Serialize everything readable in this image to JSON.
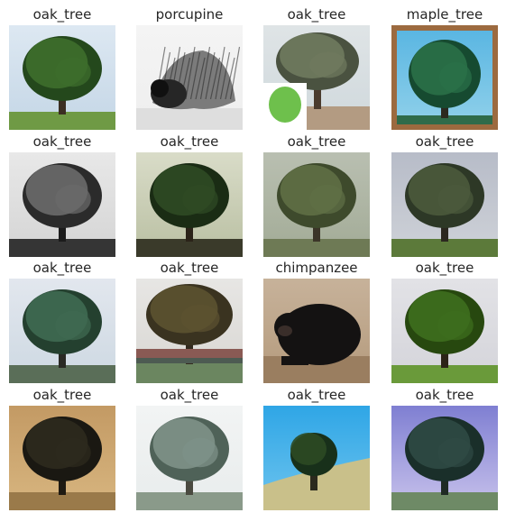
{
  "images": [
    {
      "label": "oak_tree",
      "scene": "tree",
      "sky_top": "#dde8f2",
      "sky_bottom": "#c4d6e6",
      "ground": "#6f9a45",
      "canopy": "#3e6e2c",
      "canopy_dark": "#24481c",
      "trunk": "#3b2e22"
    },
    {
      "label": "porcupine",
      "scene": "porcupine",
      "sky_top": "#f4f4f4",
      "sky_bottom": "#eeeeee",
      "ground": "#dedede",
      "canopy": "#7b7b7b",
      "canopy_dark": "#262626",
      "trunk": "#1f1f1f"
    },
    {
      "label": "oak_tree",
      "scene": "tree_inset",
      "sky_top": "#dfe4e6",
      "sky_bottom": "#cfd8dc",
      "ground": "#b39b82",
      "canopy": "#6f7a5e",
      "canopy_dark": "#4a5240",
      "trunk": "#4a3b2e",
      "inset_fill": "#6ec04c"
    },
    {
      "label": "maple_tree",
      "scene": "tree_framed",
      "sky_top": "#5ab6e2",
      "sky_bottom": "#8fd0ea",
      "ground": "#2f6b4a",
      "canopy": "#2a7048",
      "canopy_dark": "#164a30",
      "trunk": "#2c2a20",
      "frame": "#9c6a3f"
    },
    {
      "label": "oak_tree",
      "scene": "tree",
      "sky_top": "#e8e8e8",
      "sky_bottom": "#d4d4d4",
      "ground": "#353535",
      "canopy": "#6a6a6a",
      "canopy_dark": "#2b2b2b",
      "trunk": "#1b1b1b"
    },
    {
      "label": "oak_tree",
      "scene": "tree",
      "sky_top": "#d9dcc8",
      "sky_bottom": "#b9bfa2",
      "ground": "#3a3a2a",
      "canopy": "#2f4a24",
      "canopy_dark": "#1a2c14",
      "trunk": "#2b2319"
    },
    {
      "label": "oak_tree",
      "scene": "tree",
      "sky_top": "#b9bfb1",
      "sky_bottom": "#a2ab96",
      "ground": "#6e7a55",
      "canopy": "#5f6f45",
      "canopy_dark": "#3e4a2c",
      "trunk": "#3b3528"
    },
    {
      "label": "oak_tree",
      "scene": "tree",
      "sky_top": "#b7bcc8",
      "sky_bottom": "#cfd2d8",
      "ground": "#5c7a3a",
      "canopy": "#4b5a3c",
      "canopy_dark": "#2d3826",
      "trunk": "#2b271f"
    },
    {
      "label": "oak_tree",
      "scene": "tree",
      "sky_top": "#e2e7ee",
      "sky_bottom": "#cdd8e2",
      "ground": "#5a6e58",
      "canopy": "#3f6a52",
      "canopy_dark": "#24402f",
      "trunk": "#2a2a24"
    },
    {
      "label": "oak_tree",
      "scene": "tree_pond",
      "sky_top": "#e7e6e4",
      "sky_bottom": "#d8d6d2",
      "ground": "#6b8660",
      "canopy": "#5c5230",
      "canopy_dark": "#3a3320",
      "trunk": "#332a1e",
      "water": "#8a5a54"
    },
    {
      "label": "chimpanzee",
      "scene": "chimp",
      "sky_top": "#c7b29a",
      "sky_bottom": "#b49a7c",
      "ground": "#9a7e60",
      "canopy": "#2a2624",
      "canopy_dark": "#141212",
      "trunk": "#3a2f2a"
    },
    {
      "label": "oak_tree",
      "scene": "tree",
      "sky_top": "#e2e2e6",
      "sky_bottom": "#d4d4da",
      "ground": "#6a9a3a",
      "canopy": "#3e6e1e",
      "canopy_dark": "#27480f",
      "trunk": "#2c2418"
    },
    {
      "label": "oak_tree",
      "scene": "tree",
      "sky_top": "#c39a64",
      "sky_bottom": "#d8b680",
      "ground": "#9a7a4a",
      "canopy": "#2e2a1e",
      "canopy_dark": "#1a1812",
      "trunk": "#1f1a12"
    },
    {
      "label": "oak_tree",
      "scene": "tree",
      "sky_top": "#f2f4f4",
      "sky_bottom": "#e8ecec",
      "ground": "#8a9a8a",
      "canopy": "#7e9288",
      "canopy_dark": "#4f6258",
      "trunk": "#4a4a40"
    },
    {
      "label": "oak_tree",
      "scene": "tree_hill",
      "sky_top": "#2fa6e6",
      "sky_bottom": "#6ec4ee",
      "ground": "#c9c08a",
      "canopy": "#2c4a24",
      "canopy_dark": "#18301a",
      "trunk": "#2b2a1e"
    },
    {
      "label": "oak_tree",
      "scene": "tree",
      "sky_top": "#7f7fd2",
      "sky_bottom": "#c9c3ec",
      "ground": "#6e8a66",
      "canopy": "#2f4a44",
      "canopy_dark": "#1a2f2a",
      "trunk": "#1f2a24"
    }
  ]
}
